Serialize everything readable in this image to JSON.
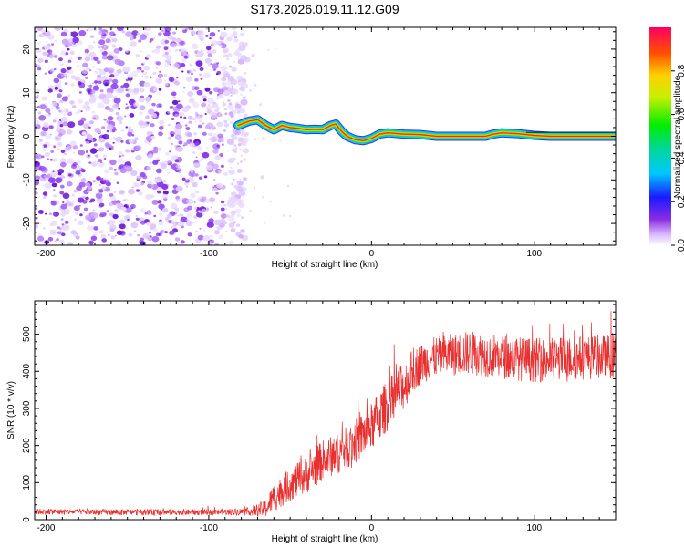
{
  "title": "S173.2026.019.11.12.G09",
  "chart_data": [
    {
      "type": "heatmap",
      "title": "S173.2026.019.11.12.G09",
      "xlabel": "Height of straight line (km)",
      "ylabel": "Frequency (Hz)",
      "xlim": [
        -207,
        150
      ],
      "ylim": [
        -25,
        25
      ],
      "x_ticks": [
        -200,
        -100,
        0,
        100
      ],
      "y_ticks": [
        -20,
        -10,
        0,
        10,
        20
      ],
      "noise_region_x": [
        -207,
        -82
      ],
      "signal_start_x": -82,
      "ridge": {
        "x": [
          -82,
          -75,
          -70,
          -65,
          -60,
          -55,
          -50,
          -45,
          -40,
          -35,
          -30,
          -25,
          -22,
          -18,
          -15,
          -10,
          -5,
          0,
          5,
          10,
          20,
          30,
          40,
          60,
          70,
          75,
          80,
          90,
          100,
          110,
          150
        ],
        "freq": [
          2.5,
          3.5,
          3.8,
          2.5,
          1.5,
          2.5,
          2.0,
          1.8,
          1.5,
          1.6,
          1.5,
          2.5,
          2.8,
          1.0,
          0.0,
          -0.8,
          -1.0,
          -0.5,
          0.5,
          0.8,
          0.5,
          0.4,
          0.0,
          0.0,
          0.0,
          0.5,
          0.8,
          0.6,
          0.2,
          0.0,
          0.0
        ]
      },
      "colorbar": {
        "label": "Normalized spectral amplitude",
        "range": [
          0.0,
          1.0
        ],
        "ticks": [
          0.0,
          0.2,
          0.4,
          0.6,
          0.8
        ],
        "tick_labels": [
          "0.0",
          "0.2",
          "0.4",
          "0.6",
          "0.8"
        ]
      }
    },
    {
      "type": "line",
      "xlabel": "Height of straight line (km)",
      "ylabel": "SNR (10 * v/v)",
      "xlim": [
        -207,
        150
      ],
      "ylim": [
        0,
        590
      ],
      "x_ticks": [
        -200,
        -100,
        0,
        100
      ],
      "y_ticks": [
        0,
        100,
        200,
        300,
        400,
        500
      ],
      "color": "#e83030",
      "series": [
        {
          "name": "SNR",
          "x": [
            -207,
            -150,
            -100,
            -75,
            -65,
            -60,
            -50,
            -40,
            -30,
            -20,
            -10,
            0,
            10,
            20,
            25,
            30,
            40,
            60,
            80,
            100,
            120,
            150
          ],
          "mean": [
            22,
            20,
            20,
            22,
            30,
            60,
            95,
            120,
            160,
            180,
            210,
            250,
            310,
            360,
            400,
            420,
            440,
            450,
            440,
            430,
            435,
            440
          ],
          "spread": [
            8,
            8,
            8,
            10,
            25,
            40,
            45,
            50,
            55,
            55,
            60,
            65,
            70,
            65,
            60,
            55,
            55,
            60,
            60,
            60,
            60,
            60
          ]
        }
      ]
    }
  ]
}
